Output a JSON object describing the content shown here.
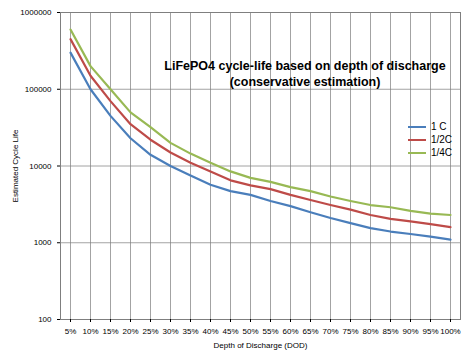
{
  "chart_data": {
    "type": "line",
    "title": "LiFePO4 cycle-life based on depth of discharge",
    "subtitle": "(conservative estimation)",
    "x_label": "Depth of Discharge (DOD)",
    "y_label": "Estimated Cycle Life",
    "categories": [
      "5%",
      "10%",
      "15%",
      "20%",
      "25%",
      "30%",
      "35%",
      "40%",
      "45%",
      "50%",
      "55%",
      "60%",
      "65%",
      "70%",
      "75%",
      "80%",
      "85%",
      "90%",
      "95%",
      "100%"
    ],
    "series": [
      {
        "name": "1 C",
        "color": "#4a7ebb",
        "values": [
          300000,
          100000,
          45000,
          23000,
          14000,
          10000,
          7500,
          5700,
          4700,
          4200,
          3500,
          3000,
          2500,
          2100,
          1800,
          1550,
          1400,
          1300,
          1200,
          1100
        ]
      },
      {
        "name": "1/2C",
        "color": "#be4b48",
        "values": [
          450000,
          150000,
          70000,
          35000,
          22000,
          15000,
          11000,
          8500,
          6500,
          5600,
          5000,
          4200,
          3600,
          3100,
          2700,
          2300,
          2050,
          1900,
          1750,
          1600
        ]
      },
      {
        "name": "1/4C",
        "color": "#98b954",
        "values": [
          600000,
          200000,
          100000,
          50000,
          32000,
          20000,
          14500,
          11000,
          8500,
          7000,
          6200,
          5300,
          4700,
          4000,
          3500,
          3100,
          2900,
          2600,
          2400,
          2300
        ]
      }
    ],
    "ylim": [
      100,
      1000000
    ],
    "yticks": [
      100,
      1000,
      10000,
      100000,
      1000000
    ],
    "log": "y",
    "grid": true,
    "legend": "right"
  }
}
